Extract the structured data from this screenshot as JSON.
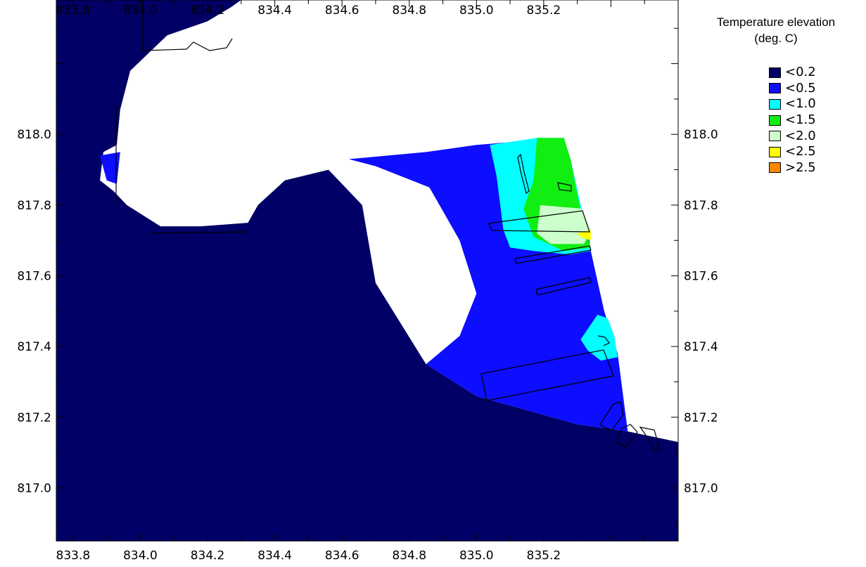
{
  "legend": {
    "title_line1": "Temperature elevation",
    "title_line2": "(deg. C)",
    "items": [
      {
        "label": "<0.2",
        "color": "#000066"
      },
      {
        "label": "<0.5",
        "color": "#0d0dff"
      },
      {
        "label": "<1.0",
        "color": "#00ffff"
      },
      {
        "label": "<1.5",
        "color": "#11ee11"
      },
      {
        "label": "<2.0",
        "color": "#ccffcc"
      },
      {
        "label": "<2.5",
        "color": "#ffff00"
      },
      {
        "label": ">2.5",
        "color": "#ff8800"
      }
    ]
  },
  "chart_data": {
    "type": "heatmap",
    "xlim": [
      833.75,
      835.6
    ],
    "ylim": [
      816.85,
      818.38
    ],
    "x_ticks": [
      833.8,
      834.0,
      834.2,
      834.4,
      834.6,
      834.8,
      835.0,
      835.2
    ],
    "x_tick_labels": [
      "833.8",
      "834.0",
      "834.2",
      "834.4",
      "834.6",
      "834.8",
      "835.0",
      "835.2"
    ],
    "y_ticks": [
      817.0,
      817.2,
      817.4,
      817.6,
      817.8,
      818.0
    ],
    "y_tick_labels": [
      "817.0",
      "817.2",
      "817.4",
      "817.6",
      "817.8",
      "818.0"
    ],
    "land_color": "#ffffff",
    "categories": [
      "<0.2",
      "<0.5",
      "<1.0",
      "<1.5",
      "<2.0",
      "<2.5",
      ">2.5"
    ],
    "zones": [
      {
        "category": "<0.2",
        "points": [
          [
            833.75,
            816.85
          ],
          [
            835.6,
            816.85
          ],
          [
            835.6,
            817.13
          ],
          [
            835.45,
            817.16
          ],
          [
            835.3,
            817.18
          ],
          [
            835.0,
            817.26
          ],
          [
            834.85,
            817.35
          ],
          [
            834.7,
            817.58
          ],
          [
            834.66,
            817.8
          ],
          [
            834.56,
            817.9
          ],
          [
            834.43,
            817.87
          ],
          [
            834.35,
            817.8
          ],
          [
            834.32,
            817.75
          ],
          [
            834.18,
            817.74
          ],
          [
            834.06,
            817.74
          ],
          [
            833.96,
            817.8
          ],
          [
            833.92,
            817.84
          ],
          [
            833.88,
            817.87
          ],
          [
            833.89,
            817.95
          ],
          [
            833.93,
            817.97
          ],
          [
            833.94,
            818.07
          ],
          [
            833.97,
            818.18
          ],
          [
            834.08,
            818.28
          ],
          [
            834.2,
            818.32
          ],
          [
            834.27,
            818.36
          ],
          [
            834.3,
            818.38
          ],
          [
            833.75,
            818.38
          ]
        ]
      },
      {
        "category": "<0.5",
        "points": [
          [
            834.62,
            817.93
          ],
          [
            834.85,
            817.95
          ],
          [
            835.0,
            817.97
          ],
          [
            835.13,
            817.98
          ],
          [
            835.26,
            817.99
          ],
          [
            835.3,
            817.77
          ],
          [
            835.33,
            817.74
          ],
          [
            835.34,
            817.67
          ],
          [
            835.38,
            817.5
          ],
          [
            835.42,
            817.38
          ],
          [
            835.45,
            817.16
          ],
          [
            835.3,
            817.18
          ],
          [
            835.0,
            817.26
          ],
          [
            834.85,
            817.35
          ],
          [
            834.95,
            817.43
          ],
          [
            835.0,
            817.55
          ],
          [
            834.95,
            817.7
          ],
          [
            834.86,
            817.85
          ],
          [
            834.7,
            817.91
          ]
        ]
      },
      {
        "category": "<0.5",
        "points": [
          [
            833.88,
            817.94
          ],
          [
            833.94,
            817.95
          ],
          [
            833.93,
            817.86
          ],
          [
            833.9,
            817.87
          ]
        ]
      },
      {
        "category": "<1.0",
        "points": [
          [
            835.04,
            817.97
          ],
          [
            835.18,
            817.99
          ],
          [
            835.26,
            817.99
          ],
          [
            835.28,
            817.93
          ],
          [
            835.34,
            817.67
          ],
          [
            835.28,
            817.66
          ],
          [
            835.17,
            817.67
          ],
          [
            835.1,
            817.68
          ],
          [
            835.08,
            817.73
          ],
          [
            835.06,
            817.88
          ]
        ]
      },
      {
        "category": "<1.0",
        "points": [
          [
            835.36,
            817.49
          ],
          [
            835.39,
            817.48
          ],
          [
            835.41,
            817.43
          ],
          [
            835.42,
            817.37
          ],
          [
            835.37,
            817.36
          ],
          [
            835.33,
            817.39
          ],
          [
            835.31,
            817.42
          ]
        ]
      },
      {
        "category": "<1.5",
        "points": [
          [
            835.18,
            817.99
          ],
          [
            835.26,
            817.99
          ],
          [
            835.28,
            817.93
          ],
          [
            835.3,
            817.83
          ],
          [
            835.32,
            817.74
          ],
          [
            835.34,
            817.68
          ],
          [
            835.26,
            817.67
          ],
          [
            835.17,
            817.71
          ],
          [
            835.14,
            817.79
          ],
          [
            835.17,
            817.87
          ]
        ]
      },
      {
        "category": "<2.0",
        "points": [
          [
            835.19,
            817.8
          ],
          [
            835.31,
            817.79
          ],
          [
            835.34,
            817.73
          ],
          [
            835.32,
            817.69
          ],
          [
            835.22,
            817.69
          ],
          [
            835.18,
            817.72
          ]
        ]
      },
      {
        "category": "<2.5",
        "points": [
          [
            835.3,
            817.72
          ],
          [
            835.34,
            817.73
          ],
          [
            835.34,
            817.7
          ],
          [
            835.31,
            817.71
          ]
        ]
      }
    ]
  }
}
